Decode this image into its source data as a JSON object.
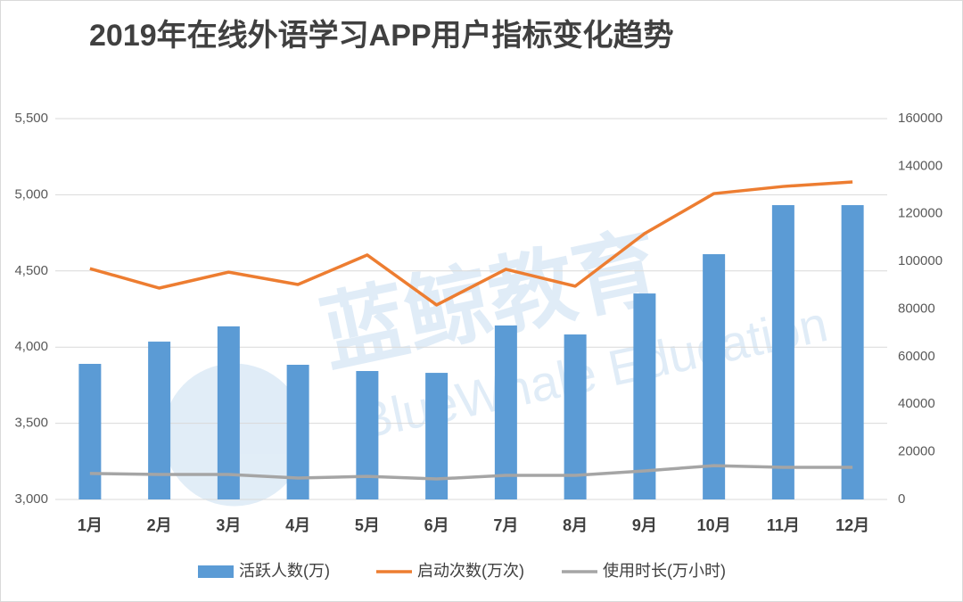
{
  "chart_data": {
    "type": "bar",
    "title": "2019年在线外语学习APP用户指标变化趋势",
    "watermark": {
      "main": "蓝鲸教育",
      "sub": "BlueWhale Education"
    },
    "categories": [
      "1月",
      "2月",
      "3月",
      "4月",
      "5月",
      "6月",
      "7月",
      "8月",
      "9月",
      "10月",
      "11月",
      "12月"
    ],
    "series": [
      {
        "name": "活跃人数(万)",
        "type": "bar",
        "color": "#5b9bd5",
        "values": [
          3890,
          4036,
          4136,
          3884,
          3843,
          3831,
          4142,
          4083,
          4352,
          4610,
          4932,
          4932
        ]
      },
      {
        "name": "启动次数(万次)",
        "type": "line",
        "axis": "y2",
        "color": "#ed7d31",
        "values": [
          97000,
          88800,
          95500,
          90300,
          102700,
          81700,
          96700,
          89600,
          111700,
          128500,
          131500,
          133400
        ]
      },
      {
        "name": "使用时长(万小时)",
        "type": "line",
        "axis": "y2",
        "color": "#a5a5a5",
        "values": [
          10900,
          10500,
          10500,
          9000,
          9700,
          8600,
          10100,
          10100,
          12000,
          14200,
          13500,
          13500
        ]
      }
    ],
    "ylim": [
      3000,
      5500
    ],
    "yticks": [
      {
        "value": 3000,
        "label": "3,000"
      },
      {
        "value": 3500,
        "label": "3,500"
      },
      {
        "value": 4000,
        "label": "4,000"
      },
      {
        "value": 4500,
        "label": "4,500"
      },
      {
        "value": 5000,
        "label": "5,000"
      },
      {
        "value": 5500,
        "label": "5,500"
      }
    ],
    "y2lim": [
      0,
      160000
    ],
    "y2ticks": [
      0,
      20000,
      40000,
      60000,
      80000,
      100000,
      120000,
      140000,
      160000
    ],
    "grid": true,
    "legend": "bottom"
  }
}
